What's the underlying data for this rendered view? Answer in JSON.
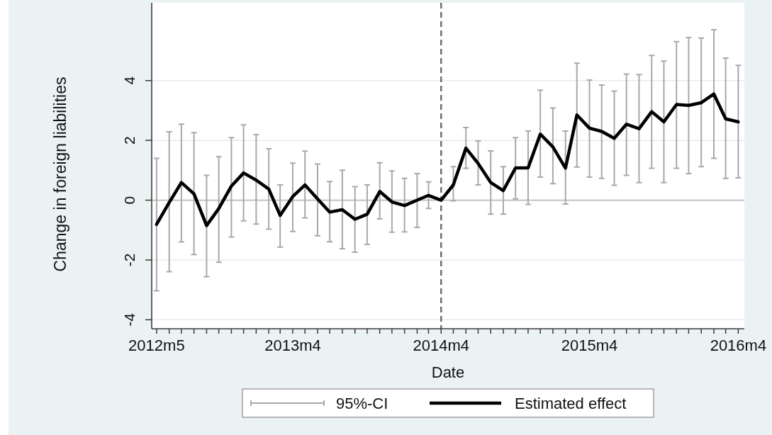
{
  "chart_data": {
    "type": "line",
    "xlabel": "Date",
    "ylabel": "Change in foreign liabilities",
    "x": [
      "2012-05",
      "2012-06",
      "2012-07",
      "2012-08",
      "2012-09",
      "2012-10",
      "2012-11",
      "2012-12",
      "2013-01",
      "2013-02",
      "2013-03",
      "2013-04",
      "2013-05",
      "2013-06",
      "2013-07",
      "2013-08",
      "2013-09",
      "2013-10",
      "2013-11",
      "2013-12",
      "2014-01",
      "2014-02",
      "2014-03",
      "2014-04",
      "2014-05",
      "2014-06",
      "2014-07",
      "2014-08",
      "2014-09",
      "2014-10",
      "2014-11",
      "2014-12",
      "2015-01",
      "2015-02",
      "2015-03",
      "2015-04",
      "2015-05",
      "2015-06",
      "2015-07",
      "2015-08",
      "2015-09",
      "2015-10",
      "2015-11",
      "2015-12",
      "2016-01",
      "2016-02",
      "2016-03",
      "2016-04"
    ],
    "series": [
      {
        "name": "Estimated effect",
        "color": "#000000",
        "values": [
          -0.81,
          -0.08,
          0.59,
          0.21,
          -0.85,
          -0.28,
          0.47,
          0.91,
          0.67,
          0.37,
          -0.51,
          0.12,
          0.51,
          0.04,
          -0.4,
          -0.32,
          -0.64,
          -0.47,
          0.29,
          -0.06,
          -0.18,
          0.0,
          0.16,
          0,
          0.51,
          1.74,
          1.23,
          0.59,
          0.32,
          1.08,
          1.08,
          2.21,
          1.78,
          1.07,
          2.85,
          2.41,
          2.3,
          2.07,
          2.54,
          2.39,
          2.96,
          2.62,
          3.2,
          3.17,
          3.26,
          3.55,
          2.72,
          2.62
        ],
        "errors": [
          [
            -3.03,
            1.4
          ],
          [
            -2.39,
            2.29
          ],
          [
            -1.4,
            2.54
          ],
          [
            -1.82,
            2.26
          ],
          [
            -2.56,
            0.83
          ],
          [
            -2.08,
            1.45
          ],
          [
            -1.23,
            2.09
          ],
          [
            -0.69,
            2.52
          ],
          [
            -0.8,
            2.19
          ],
          [
            -0.97,
            1.72
          ],
          [
            -1.57,
            0.51
          ],
          [
            -1.05,
            1.24
          ],
          [
            -0.59,
            1.64
          ],
          [
            -1.19,
            1.21
          ],
          [
            -1.39,
            0.62
          ],
          [
            -1.62,
            1.0
          ],
          [
            -1.74,
            0.45
          ],
          [
            -1.48,
            0.51
          ],
          [
            -0.63,
            1.25
          ],
          [
            -1.07,
            0.98
          ],
          [
            -1.06,
            0.73
          ],
          [
            -0.91,
            0.89
          ],
          [
            -0.28,
            0.61
          ],
          null,
          [
            -0.02,
            1.12
          ],
          [
            1.07,
            2.43
          ],
          [
            0.51,
            1.98
          ],
          [
            -0.47,
            1.65
          ],
          [
            -0.47,
            1.12
          ],
          [
            0.04,
            2.09
          ],
          [
            -0.14,
            2.31
          ],
          [
            0.77,
            3.68
          ],
          [
            0.55,
            3.08
          ],
          [
            -0.13,
            2.31
          ],
          [
            1.11,
            4.58
          ],
          [
            0.77,
            4.02
          ],
          [
            0.73,
            3.85
          ],
          [
            0.5,
            3.65
          ],
          [
            0.83,
            4.22
          ],
          [
            0.59,
            4.2
          ],
          [
            1.07,
            4.84
          ],
          [
            0.59,
            4.65
          ],
          [
            1.07,
            5.3
          ],
          [
            0.89,
            5.44
          ],
          [
            1.12,
            5.42
          ],
          [
            1.4,
            5.7
          ],
          [
            0.73,
            4.75
          ],
          [
            0.75,
            4.51
          ]
        ]
      }
    ],
    "xlim": [
      "2012-04-19",
      "2016-04-16"
    ],
    "xticks": [
      {
        "value": "2012-05",
        "label": "2012m5"
      },
      {
        "value": "2012-06",
        "label": null
      },
      {
        "value": "2012-07",
        "label": null
      },
      {
        "value": "2012-08",
        "label": null
      },
      {
        "value": "2012-09",
        "label": null
      },
      {
        "value": "2012-10",
        "label": null
      },
      {
        "value": "2012-11",
        "label": null
      },
      {
        "value": "2012-12",
        "label": null
      },
      {
        "value": "2013-01",
        "label": null
      },
      {
        "value": "2013-02",
        "label": null
      },
      {
        "value": "2013-03",
        "label": null
      },
      {
        "value": "2013-04",
        "label": "2013m4"
      },
      {
        "value": "2013-05",
        "label": null
      },
      {
        "value": "2013-06",
        "label": null
      },
      {
        "value": "2013-07",
        "label": null
      },
      {
        "value": "2013-08",
        "label": null
      },
      {
        "value": "2013-09",
        "label": null
      },
      {
        "value": "2013-10",
        "label": null
      },
      {
        "value": "2013-11",
        "label": null
      },
      {
        "value": "2013-12",
        "label": null
      },
      {
        "value": "2014-01",
        "label": null
      },
      {
        "value": "2014-02",
        "label": null
      },
      {
        "value": "2014-03",
        "label": null
      },
      {
        "value": "2014-04",
        "label": "2014m4"
      },
      {
        "value": "2014-05",
        "label": null
      },
      {
        "value": "2014-06",
        "label": null
      },
      {
        "value": "2014-07",
        "label": null
      },
      {
        "value": "2014-08",
        "label": null
      },
      {
        "value": "2014-09",
        "label": null
      },
      {
        "value": "2014-10",
        "label": null
      },
      {
        "value": "2014-11",
        "label": null
      },
      {
        "value": "2014-12",
        "label": null
      },
      {
        "value": "2015-01",
        "label": null
      },
      {
        "value": "2015-02",
        "label": null
      },
      {
        "value": "2015-03",
        "label": null
      },
      {
        "value": "2015-04",
        "label": "2015m4"
      },
      {
        "value": "2015-05",
        "label": null
      },
      {
        "value": "2015-06",
        "label": null
      },
      {
        "value": "2015-07",
        "label": null
      },
      {
        "value": "2015-08",
        "label": null
      },
      {
        "value": "2015-09",
        "label": null
      },
      {
        "value": "2015-10",
        "label": null
      },
      {
        "value": "2015-11",
        "label": null
      },
      {
        "value": "2015-12",
        "label": null
      },
      {
        "value": "2016-01",
        "label": null
      },
      {
        "value": "2016-02",
        "label": null
      },
      {
        "value": "2016-03",
        "label": null
      },
      {
        "value": "2016-04",
        "label": "2016m4"
      }
    ],
    "ylim": [
      -4.3,
      6.6
    ],
    "yticks": [
      -4,
      -2,
      0,
      2,
      4
    ],
    "grid": "y",
    "ref_lines": [
      {
        "axis": "y",
        "value": 0,
        "color": "#bdbdbd"
      },
      {
        "axis": "x",
        "value": "2014-04",
        "color": "#6e6e6e",
        "line_style": "dashed"
      }
    ],
    "legend": "bottom",
    "annotations": [
      "95%-CI"
    ]
  }
}
